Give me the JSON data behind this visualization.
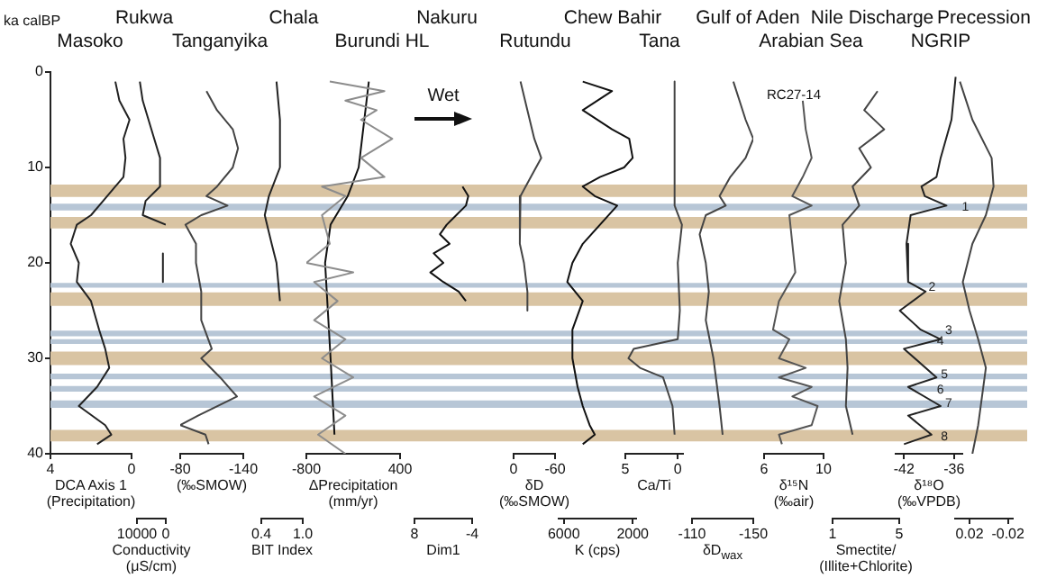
{
  "chart_data": [
    {
      "type": "line",
      "title": "Masoko",
      "ylabel": "ka calBP",
      "xlabel": "DCA Axis 1\n(Precipitation)",
      "xlim": [
        4,
        0
      ],
      "xticks": [
        4,
        0
      ],
      "ylim": [
        40,
        0
      ],
      "yticks": [
        0,
        10,
        20,
        30,
        40
      ],
      "series": [
        {
          "color": "#222222",
          "x": [
            0.8,
            0.6,
            0.1,
            0.4,
            0.3,
            0.4,
            0.8,
            1.4,
            2.0,
            2.7,
            3.0,
            2.6,
            2.7,
            2.0,
            1.6,
            1.3,
            1.1,
            1.7,
            2.6,
            1.3,
            1.0,
            1.7
          ],
          "values": [
            1,
            3,
            5,
            7,
            9,
            11,
            12,
            13.5,
            15,
            16,
            18,
            20,
            22,
            24,
            27,
            29,
            31,
            33,
            35,
            37,
            38,
            39
          ]
        }
      ],
      "bands": [
        {
          "axis": "y",
          "from": 11.8,
          "to": 13.1,
          "color": "#d9c4a3"
        },
        {
          "axis": "y",
          "from": 13.8,
          "to": 14.5,
          "color": "#b7c6d6"
        },
        {
          "axis": "y",
          "from": 15.2,
          "to": 16.4,
          "color": "#d9c4a3"
        },
        {
          "axis": "y",
          "from": 22.1,
          "to": 22.6,
          "color": "#b7c6d6"
        },
        {
          "axis": "y",
          "from": 23.1,
          "to": 24.5,
          "color": "#d9c4a3"
        },
        {
          "axis": "y",
          "from": 27.1,
          "to": 27.7,
          "color": "#b7c6d6"
        },
        {
          "axis": "y",
          "from": 28.0,
          "to": 28.5,
          "color": "#b7c6d6"
        },
        {
          "axis": "y",
          "from": 29.3,
          "to": 30.7,
          "color": "#d9c4a3"
        },
        {
          "axis": "y",
          "from": 31.6,
          "to": 32.2,
          "color": "#b7c6d6"
        },
        {
          "axis": "y",
          "from": 32.9,
          "to": 33.5,
          "color": "#b7c6d6"
        },
        {
          "axis": "y",
          "from": 34.4,
          "to": 35.2,
          "color": "#b7c6d6"
        },
        {
          "axis": "y",
          "from": 37.5,
          "to": 38.7,
          "color": "#d9c4a3"
        }
      ]
    },
    {
      "type": "line",
      "title": "Rukwa",
      "xlabel": "Conductivity\n(μS/cm)",
      "xlim": [
        10000,
        0
      ],
      "xticks": [
        10000,
        0
      ],
      "ylim": [
        40,
        0
      ],
      "tick_labels": "x",
      "series": [
        {
          "color": "#222222",
          "x": [
            9000,
            8000,
            6000,
            4000,
            2000,
            2000,
            7000,
            8000,
            0,
            null,
            1000,
            1000
          ],
          "values": [
            1,
            3,
            5,
            7,
            9,
            12,
            13.5,
            15,
            16,
            null,
            19,
            22
          ]
        }
      ]
    },
    {
      "type": "line",
      "title": "Tanganyika",
      "xlabel": "(‰SMOW)",
      "xlim": [
        -80,
        -140
      ],
      "xticks": [
        -80,
        -140
      ],
      "ylim": [
        40,
        0
      ],
      "tick_labels": "x",
      "series": [
        {
          "color": "#444444",
          "x": [
            -105,
            -115,
            -130,
            -135,
            -130,
            -115,
            -105,
            -125,
            -100,
            -85,
            -95,
            -95,
            -100,
            -100,
            -110,
            -100,
            -118,
            -134,
            -97,
            -80,
            -104,
            -107
          ],
          "values": [
            2,
            4,
            6,
            8,
            10,
            12,
            13,
            14,
            15,
            16,
            18,
            20,
            23,
            26,
            29,
            30,
            32,
            34,
            36,
            37,
            38,
            39
          ]
        }
      ]
    },
    {
      "type": "line",
      "title": "Chala",
      "xlabel": "BIT Index",
      "xlim": [
        0.4,
        1.0
      ],
      "xticks": [
        0.4,
        {
          "value": 1,
          "label": "1.0"
        }
      ],
      "ylim": [
        40,
        0
      ],
      "tick_labels": "x",
      "series": [
        {
          "color": "#222222",
          "x": [
            0.62,
            0.67,
            0.67,
            0.51,
            0.45,
            0.55,
            0.62,
            0.67
          ],
          "values": [
            1,
            5,
            10,
            13,
            15,
            18,
            20,
            24
          ]
        }
      ]
    },
    {
      "type": "line",
      "title": "Burundi HL",
      "xlabel": "ΔPrecipitation\n(mm/yr)",
      "xlim": [
        -800,
        400
      ],
      "xticks": [
        -800,
        400
      ],
      "ylim": [
        40,
        0
      ],
      "tick_labels": "x",
      "series": [
        {
          "color": "#8c8c8c",
          "x": [
            -500,
            200,
            -300,
            100,
            -100,
            300,
            -100,
            200,
            -600,
            -300,
            -600,
            -500,
            -800,
            -200,
            -700,
            -400,
            -700,
            -300,
            -600,
            -200,
            -700,
            -300,
            -650,
            -300
          ],
          "values": [
            1,
            2,
            3,
            4,
            5,
            7,
            9,
            11,
            12,
            13,
            15,
            18,
            20,
            21,
            22,
            24,
            26,
            28,
            30,
            32,
            34,
            36,
            38,
            40
          ]
        },
        {
          "color": "#111111",
          "x": [
            0,
            -130,
            -270,
            -490,
            -560,
            -490,
            -440
          ],
          "values": [
            1,
            10,
            13,
            16,
            20,
            30,
            38
          ]
        }
      ]
    },
    {
      "type": "line",
      "title": "Nakuru",
      "xlabel": "Dim1",
      "xlim": [
        8,
        -4
      ],
      "xticks": [
        8,
        -4
      ],
      "ylim": [
        40,
        0
      ],
      "tick_labels": "x",
      "annotations": [
        "Wet"
      ],
      "series": [
        {
          "color": "#111111",
          "x": [
            -2,
            -3.2,
            -2.7,
            -0.7,
            1.3,
            2.7,
            0.7,
            4,
            2,
            4.7,
            2,
            -1.2,
            -2.7
          ],
          "values": [
            12,
            13,
            14,
            15,
            16,
            17,
            18,
            19,
            20,
            21,
            22,
            23,
            24
          ]
        }
      ]
    },
    {
      "type": "line",
      "title": "Rutundu",
      "xlabel": "δD\n(‰SMOW)",
      "xlim": [
        0,
        -60
      ],
      "xticks": [
        0,
        -60
      ],
      "ylim": [
        40,
        0
      ],
      "tick_labels": "x",
      "series": [
        {
          "color": "#444444",
          "x": [
            -10,
            -20,
            -30,
            -40,
            -25,
            -10,
            -8,
            -10,
            -15,
            -20,
            -20
          ],
          "values": [
            1,
            4,
            7,
            9,
            11,
            13,
            15,
            18,
            20,
            23,
            25
          ]
        }
      ]
    },
    {
      "type": "line",
      "title": "Chew Bahir",
      "xlabel": "K (cps)",
      "xlim": [
        6300,
        1800
      ],
      "xticks": [
        6000,
        2000
      ],
      "ylim": [
        40,
        0
      ],
      "tick_labels": "x",
      "series": [
        {
          "color": "#111111",
          "x": [
            4900,
            3200,
            4900,
            3200,
            2200,
            2000,
            2500,
            3900,
            4900,
            4200,
            2900,
            3900,
            4900,
            5500,
            5800,
            4900,
            5500,
            5500,
            5200,
            4900,
            4500,
            4200,
            4900
          ],
          "values": [
            1,
            2,
            4,
            6,
            7,
            9,
            10,
            11,
            12,
            13,
            14,
            16,
            18,
            20,
            22,
            24,
            27,
            30,
            33,
            35,
            37,
            38,
            39
          ]
        }
      ]
    },
    {
      "type": "line",
      "title": "Tana",
      "xlabel": "Ca/Ti",
      "xlim": [
        5,
        -0.5
      ],
      "xticks": [
        5,
        0
      ],
      "ylim": [
        40,
        0
      ],
      "tick_labels": "x",
      "series": [
        {
          "color": "#444444",
          "x": [
            0.3,
            0.3,
            -0.4,
            0,
            -0.2,
            0,
            4.2,
            4.7,
            3.6,
            1.4,
            0.5,
            0.3
          ],
          "values": [
            1,
            14,
            16,
            20,
            25,
            28,
            29,
            30,
            31,
            32,
            35,
            38
          ]
        }
      ]
    },
    {
      "type": "line",
      "title": "Gulf of Aden",
      "xlabel": "δD$_{wax}$",
      "xlim": [
        -110,
        -150
      ],
      "xticks": [
        -110,
        -150
      ],
      "ylim": [
        40,
        0
      ],
      "tick_labels": "x",
      "series": [
        {
          "color": "#444444",
          "x": [
            -137,
            -141,
            -145,
            -150,
            -145,
            -135,
            -128,
            -132,
            -119,
            -115,
            -119,
            -121,
            -119,
            -124,
            -128,
            -130
          ],
          "values": [
            1,
            3,
            5,
            7,
            9,
            11,
            13,
            14,
            15,
            17,
            20,
            23,
            26,
            30,
            35,
            38
          ]
        }
      ]
    },
    {
      "type": "line",
      "title": "Arabian Sea",
      "xlabel": "δ¹⁵N\n(‰air)",
      "xlim": [
        6,
        10
      ],
      "xticks": [
        6,
        10
      ],
      "ylim": [
        40,
        0
      ],
      "tick_labels": "x",
      "annotations": [
        "RC27-14"
      ],
      "series": [
        {
          "color": "#555555",
          "x": [
            8.6,
            8.8,
            9.2,
            8.6,
            7.9,
            9.2,
            7.7,
            7.9,
            8.1,
            7,
            6.6,
            7.7,
            7,
            8.8,
            7,
            9.2,
            7.9,
            9.6,
            9.2,
            7,
            7.2
          ],
          "values": [
            3,
            6,
            9,
            11,
            13,
            14,
            15,
            18,
            21,
            24,
            27,
            28,
            30,
            31,
            32,
            33,
            34,
            35,
            37,
            38,
            39
          ]
        }
      ]
    },
    {
      "type": "line",
      "title": "Nile Discharge",
      "xlabel": "Smectite/\n(Illite+Chlorite)",
      "xlim": [
        1,
        5
      ],
      "xticks": [
        1,
        5
      ],
      "ylim": [
        40,
        0
      ],
      "tick_labels": "x",
      "series": [
        {
          "color": "#444444",
          "x": [
            3.7,
            2.9,
            4.1,
            2.6,
            3.3,
            2.2,
            2.6,
            1.6,
            1.8,
            1.4,
            1.8,
            1.9,
            1.8,
            2.2
          ],
          "values": [
            2,
            4,
            6,
            8,
            10,
            12,
            14,
            16,
            20,
            24,
            28,
            31,
            35,
            38
          ]
        }
      ]
    },
    {
      "type": "line",
      "title": "NGRIP",
      "xlabel": "δ¹⁸O\n(‰VPDB)",
      "xlim": [
        -43,
        -35
      ],
      "xticks": [
        -42,
        -36
      ],
      "ylim": [
        40,
        0
      ],
      "tick_labels": "x",
      "annotations": [
        {
          "text": "1",
          "x": -35.5,
          "y": 14.2
        },
        {
          "text": "2",
          "x": -39.5,
          "y": 22.6
        },
        {
          "text": "3",
          "x": -37.5,
          "y": 27.1
        },
        {
          "text": "4",
          "x": -38.5,
          "y": 28.2
        },
        {
          "text": "5",
          "x": -38,
          "y": 31.7
        },
        {
          "text": "6",
          "x": -38.5,
          "y": 33.3
        },
        {
          "text": "7",
          "x": -37.5,
          "y": 34.7
        },
        {
          "text": "8",
          "x": -38,
          "y": 38.2
        }
      ],
      "series": [
        {
          "color": "#222222",
          "x": [
            -35.8,
            -36.3,
            -37.6,
            -38.1,
            -39.9,
            -39.5,
            -36.9,
            -41.2,
            -41.7,
            -41.5,
            -39.4,
            -42.5,
            -40,
            -37.6,
            -42,
            -38.1,
            -41.5,
            -37.6,
            -41.5,
            -38.7,
            -42
          ],
          "values": [
            0.5,
            5,
            9,
            11,
            12,
            13,
            14,
            15,
            18,
            22,
            23,
            25,
            27,
            28,
            29,
            32,
            33,
            35,
            36,
            38,
            39
          ]
        }
      ]
    },
    {
      "type": "line",
      "title": "Precession",
      "xlim": [
        0.035,
        -0.025
      ],
      "xticks": [
        0.02,
        -0.02
      ],
      "ylim": [
        40,
        0
      ],
      "tick_labels": "x",
      "series": [
        {
          "color": "#444444",
          "x": [
            0.03,
            0.017,
            -0.003,
            -0.005,
            0.003,
            0.017,
            0.027,
            0.02,
            0.011,
            0.003,
            0.007,
            0.011,
            0.017
          ],
          "values": [
            1,
            5,
            9,
            12,
            15,
            18,
            22,
            25,
            28,
            31,
            34,
            37,
            40
          ]
        }
      ]
    }
  ]
}
